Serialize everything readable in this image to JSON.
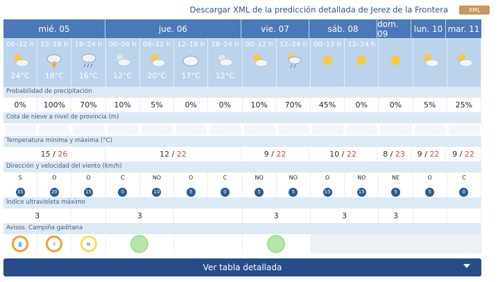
{
  "header": {
    "xml_link": "Descargar XML de la predicción detallada de Jerez de la Frontera",
    "xml_badge": "XML"
  },
  "days": [
    "mié. 05",
    "jue. 06",
    "vie. 07",
    "sáb. 08",
    "dom. 09",
    "lun. 10",
    "mar. 11"
  ],
  "periods": [
    {
      "label": "06–12 h",
      "temp": "24°C",
      "icon": "sun-cloud-icon"
    },
    {
      "label": "12–18 h",
      "temp": "18°C",
      "icon": "storm-icon"
    },
    {
      "label": "18–24 h",
      "temp": "16°C",
      "icon": "rain-cloud-icon"
    },
    {
      "label": "00–06 h",
      "temp": "12°C",
      "icon": "cloud-moon-icon"
    },
    {
      "label": "06–12 h",
      "temp": "20°C",
      "icon": "sun-cloud-icon"
    },
    {
      "label": "12–18 h",
      "temp": "17°C",
      "icon": "cloud-icon"
    },
    {
      "label": "18–24 h",
      "temp": "12°C",
      "icon": "cloud-moon-icon"
    },
    {
      "label": "00–12 h",
      "temp": "",
      "icon": "sun-cloud-icon"
    },
    {
      "label": "12–24 h",
      "temp": "",
      "icon": "rain-cloud-icon"
    },
    {
      "label": "00–12 h",
      "temp": "",
      "icon": "sun-icon"
    },
    {
      "label": "12–24 h",
      "temp": "",
      "icon": "sun-icon"
    },
    {
      "label": "",
      "temp": "",
      "icon": "sun-icon"
    },
    {
      "label": "",
      "temp": "",
      "icon": "sun-cloud-icon"
    },
    {
      "label": "",
      "temp": "",
      "icon": "sun-cloud-icon"
    }
  ],
  "labels": {
    "precip": "Probabilidad de precipitación",
    "snow": "Cota de nieve a nivel de provincia (m)",
    "temp": "Temperatura mínima y máxima (°C)",
    "wind": "Dirección y velocidad del viento (km/h)",
    "uv": "Índice ultravioleta máximo",
    "avisos": "Avisos. Campiña gaditana"
  },
  "precip": [
    "0%",
    "100%",
    "70%",
    "10%",
    "5%",
    "0%",
    "0%",
    "10%",
    "70%",
    "45%",
    "0%",
    "0%",
    "5%",
    "25%"
  ],
  "temps": [
    {
      "min": "15",
      "max": "26"
    },
    {
      "min": "12",
      "max": "22"
    },
    {
      "min": "9",
      "max": "22"
    },
    {
      "min": "10",
      "max": "22"
    },
    {
      "min": "8",
      "max": "23"
    },
    {
      "min": "9",
      "max": "22"
    },
    {
      "min": "9",
      "max": "22"
    }
  ],
  "wind": [
    {
      "dir": "S",
      "speed": "35"
    },
    {
      "dir": "O",
      "speed": "20"
    },
    {
      "dir": "O",
      "speed": "15"
    },
    {
      "dir": "C",
      "speed": "0"
    },
    {
      "dir": "NO",
      "speed": "10"
    },
    {
      "dir": "O",
      "speed": "5"
    },
    {
      "dir": "C",
      "speed": "0"
    },
    {
      "dir": "NO",
      "speed": "5"
    },
    {
      "dir": "NO",
      "speed": "5"
    },
    {
      "dir": "O",
      "speed": "15"
    },
    {
      "dir": "NO",
      "speed": "15"
    },
    {
      "dir": "NE",
      "speed": "5"
    },
    {
      "dir": "O",
      "speed": "5"
    },
    {
      "dir": "C",
      "speed": "0"
    }
  ],
  "uv": [
    "3",
    "3",
    "3",
    "3",
    "3"
  ],
  "footer": {
    "label": "Ver tabla detallada"
  }
}
